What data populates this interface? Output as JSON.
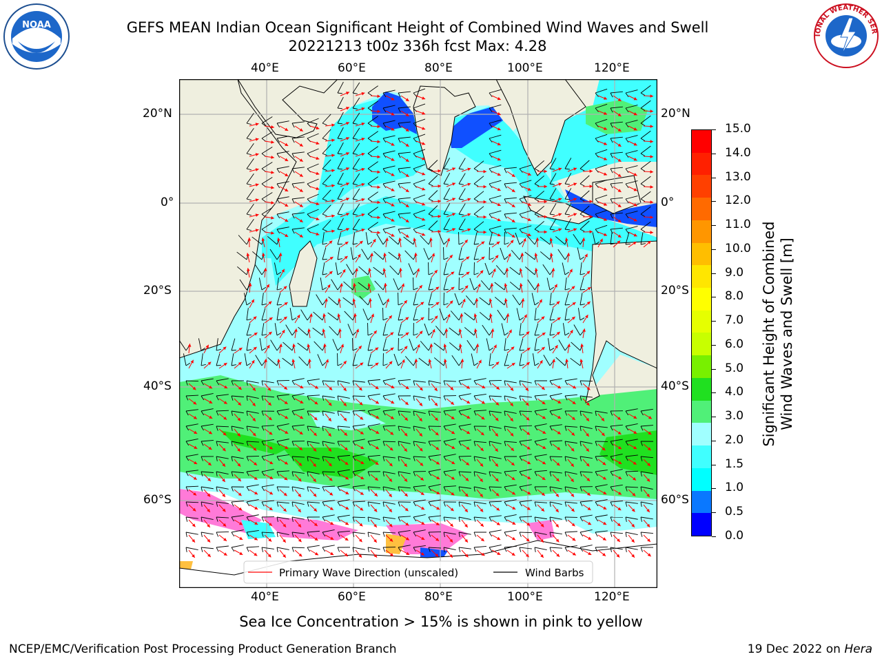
{
  "title_line1": "GEFS MEAN Indian Ocean Significant Height of Combined Wind Waves and Swell",
  "title_line2": "20221213 t00z 336h fcst   Max: 4.28",
  "logos": {
    "left": "NOAA",
    "right": "NATIONAL WEATHER SERVICE",
    "left_icon": "noaa-logo-icon",
    "right_icon": "nws-logo-icon"
  },
  "map": {
    "lon_labels": [
      "40°E",
      "60°E",
      "80°E",
      "100°E",
      "120°E"
    ],
    "lat_labels": [
      "20°N",
      "0°",
      "20°S",
      "40°S",
      "60°S"
    ],
    "land_color": "#efefdf",
    "ocean_colors": {
      "light": "#a0ffff",
      "cyan": "#40ffff",
      "green": "#50f078",
      "bright_green": "#20e020",
      "blue": "#1050ff"
    }
  },
  "legend": {
    "wave_label": "Primary Wave Direction (unscaled)",
    "wind_label": "Wind Barbs",
    "wave_color": "#ff0000",
    "wind_color": "#000000"
  },
  "colorbar": {
    "label_line1": "Significant Height of Combined",
    "label_line2": "Wind Waves and Swell [m]",
    "ticks": [
      "15.0",
      "14.0",
      "13.0",
      "12.0",
      "11.0",
      "10.0",
      "9.0",
      "8.0",
      "7.0",
      "6.0",
      "5.0",
      "4.0",
      "3.0",
      "2.0",
      "1.5",
      "1.0",
      "0.5",
      "0.0"
    ],
    "colors": [
      "#ff0000",
      "#ff2000",
      "#ff4000",
      "#ff6a00",
      "#ff9600",
      "#ffbe00",
      "#ffe600",
      "#ffff00",
      "#e6ff00",
      "#c8ff00",
      "#78f000",
      "#20e020",
      "#50f078",
      "#a0ffff",
      "#40ffff",
      "#00ffff",
      "#0a78ff",
      "#0000ff"
    ]
  },
  "subtitle": "Sea Ice Concentration > 15% is shown in pink to yellow",
  "footer_left": "NCEP/EMC/Verification Post Processing Product Generation Branch",
  "footer_right_prefix": "19 Dec 2022 on ",
  "footer_right_host": "Hera"
}
